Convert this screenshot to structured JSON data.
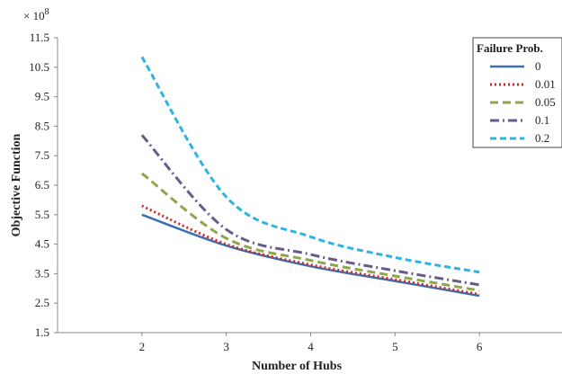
{
  "chart_data": {
    "type": "line",
    "title": "",
    "xlabel": "Number of Hubs",
    "ylabel": "Objective Function",
    "y_multiplier": "× 10",
    "y_multiplier_exp": "8",
    "x": [
      2,
      3,
      4,
      5,
      6
    ],
    "x_ticks": [
      "2",
      "3",
      "4",
      "5",
      "6"
    ],
    "xlim": [
      1,
      7
    ],
    "ylim": [
      1.5,
      11.5
    ],
    "y_ticks": [
      "1.5",
      "2.5",
      "3.5",
      "4.5",
      "5.5",
      "6.5",
      "7.5",
      "8.5",
      "9.5",
      "10.5",
      "11.5"
    ],
    "grid": false,
    "legend_title": "Failure Prob.",
    "legend_position": "top-right",
    "series": [
      {
        "name": "0",
        "values": [
          5.5,
          4.45,
          3.75,
          3.25,
          2.75
        ],
        "color": "#3a6fb3",
        "dash": "solid"
      },
      {
        "name": "0.01",
        "values": [
          5.8,
          4.5,
          3.8,
          3.3,
          2.8
        ],
        "color": "#cc2a2a",
        "dash": "dotted"
      },
      {
        "name": "0.05",
        "values": [
          6.9,
          4.7,
          3.95,
          3.42,
          2.93
        ],
        "color": "#8fa64a",
        "dash": "dashed"
      },
      {
        "name": "0.1",
        "values": [
          8.2,
          5.0,
          4.15,
          3.6,
          3.12
        ],
        "color": "#6a5a8c",
        "dash": "dashdot"
      },
      {
        "name": "0.2",
        "values": [
          10.85,
          6.1,
          4.75,
          4.05,
          3.55
        ],
        "color": "#2bb5e0",
        "dash": "dashed-long"
      }
    ]
  }
}
